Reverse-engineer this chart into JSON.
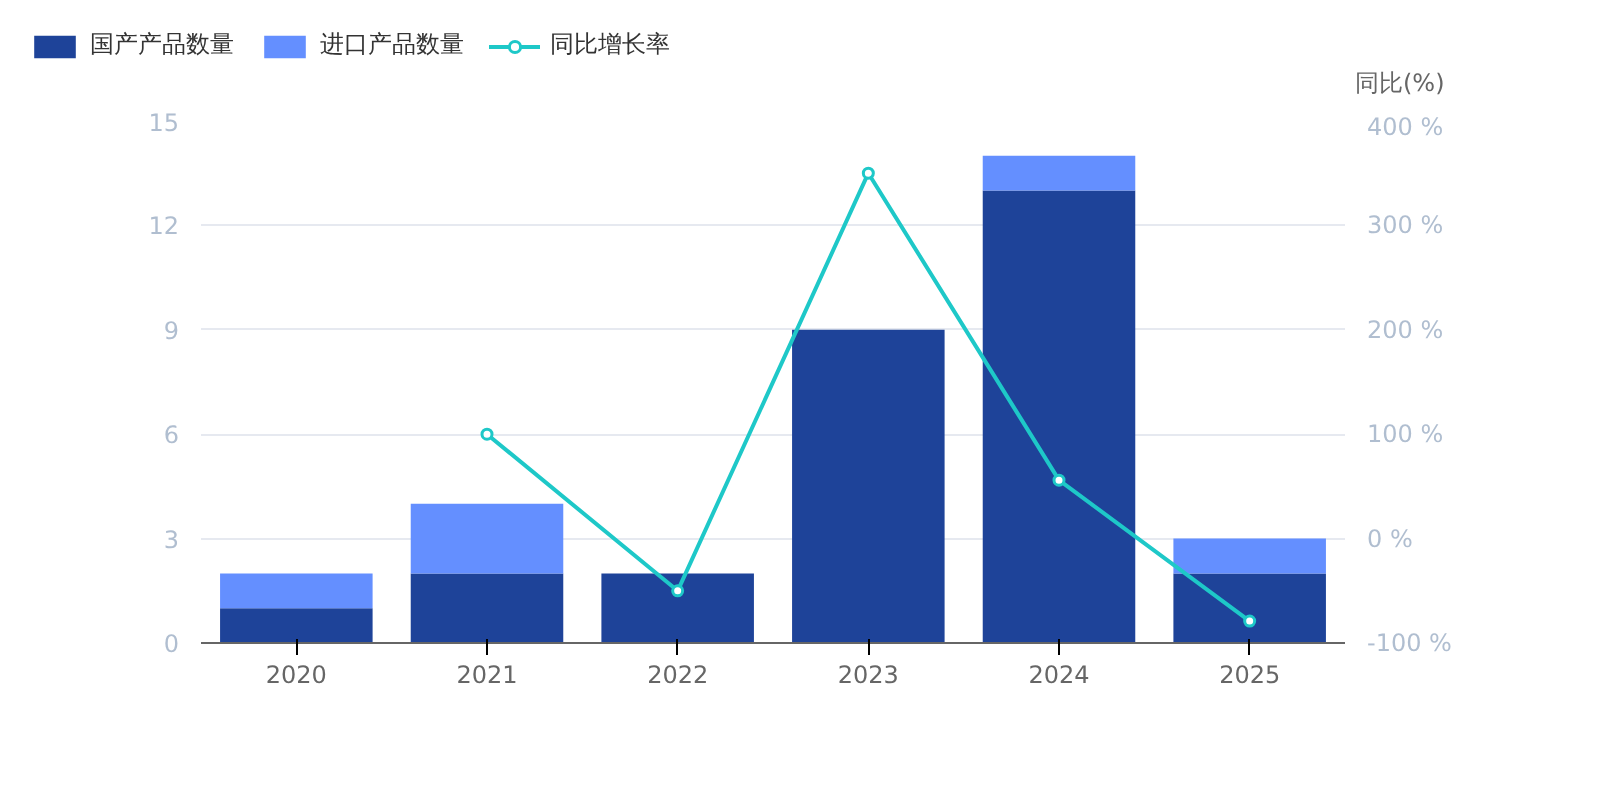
{
  "chart_data": {
    "type": "bar",
    "stacked": true,
    "categories": [
      "2020",
      "2021",
      "2022",
      "2023",
      "2024",
      "2025"
    ],
    "series": [
      {
        "name": "国产产品数量",
        "color": "#1e4399",
        "values": [
          1,
          2,
          2,
          9,
          13,
          2
        ]
      },
      {
        "name": "进口产品数量",
        "color": "#648fff",
        "values": [
          1,
          2,
          0,
          0,
          1,
          1
        ]
      },
      {
        "name": "同比增长率",
        "type": "line",
        "axis": "y2",
        "color": "#1ec8c8",
        "values": [
          null,
          100,
          -50,
          350,
          56,
          -79
        ]
      }
    ],
    "ylim": [
      0,
      15
    ],
    "yticks": [
      0,
      3,
      6,
      9,
      12,
      15
    ],
    "y2lim": [
      -100,
      400
    ],
    "y2ticks": [
      {
        "value": -100,
        "label": "-100 %"
      },
      {
        "value": 0,
        "label": "0 %"
      },
      {
        "value": 100,
        "label": "100 %"
      },
      {
        "value": 200,
        "label": "200 %"
      },
      {
        "value": 300,
        "label": "300 %"
      },
      {
        "value": 400,
        "label": "400 %"
      }
    ],
    "y2label": "同比(%)",
    "grid": "y",
    "legend": "top left",
    "marker": "circle",
    "line_style": "solid"
  }
}
